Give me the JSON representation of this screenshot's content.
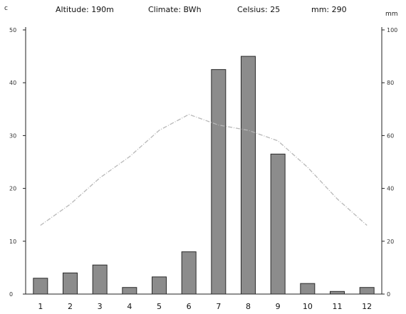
{
  "header": {
    "altitude": "Altitude: 190m",
    "climate": "Climate: BWh",
    "celsius": "Celsius: 25",
    "mm": "mm: 290"
  },
  "chart_data": {
    "type": "bar",
    "categories": [
      "1",
      "2",
      "3",
      "4",
      "5",
      "6",
      "7",
      "8",
      "9",
      "10",
      "11",
      "12"
    ],
    "series": [
      {
        "type": "bar",
        "axis": "right",
        "values": [
          6,
          8,
          11,
          2.5,
          6.5,
          16,
          85,
          90,
          53,
          4,
          1,
          2.5
        ]
      },
      {
        "type": "line",
        "axis": "left",
        "values": [
          13,
          17,
          22,
          26,
          31,
          34,
          32,
          31,
          29,
          24,
          18,
          13
        ]
      }
    ],
    "left_axis": {
      "label": "c",
      "ylim": [
        0,
        50
      ],
      "ticks": [
        "0",
        "10",
        "20",
        "30",
        "40",
        "50"
      ]
    },
    "right_axis": {
      "label": "mm",
      "ylim": [
        0,
        100
      ],
      "ticks": [
        "0",
        "20",
        "40",
        "60",
        "80",
        "100"
      ]
    },
    "grid": false,
    "colors": {
      "bar_fill": "#8c8c8c",
      "bar_stroke": "#2a2a2a",
      "line": "#b8b8b8",
      "axis": "#222222"
    }
  }
}
